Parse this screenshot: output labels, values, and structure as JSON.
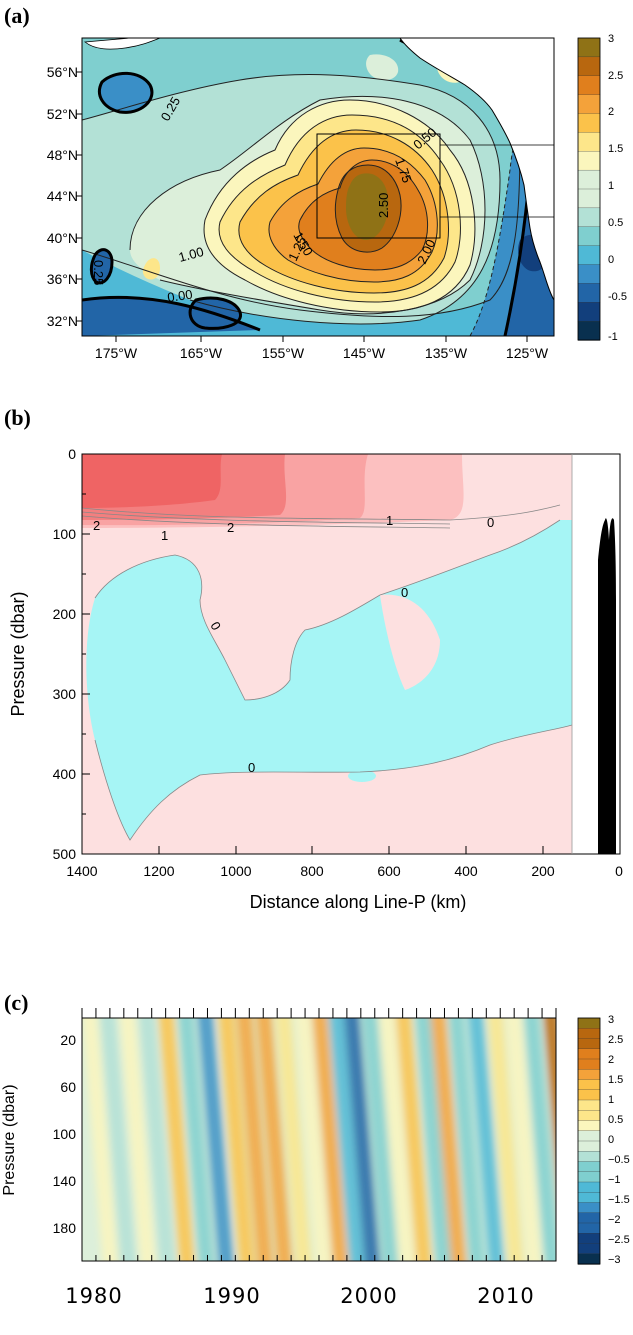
{
  "panels": {
    "a": {
      "label": "(a)"
    },
    "b": {
      "label": "(b)"
    },
    "c": {
      "label": "(c)"
    }
  },
  "colors": {
    "scale": [
      "#09304f",
      "#123f7c",
      "#2265a7",
      "#3a8fc7",
      "#4fb9d6",
      "#7fcfcf",
      "#b3e1d6",
      "#dcefda",
      "#fbf6bd",
      "#fde68a",
      "#fbc24a",
      "#f4a23a",
      "#e07f1d",
      "#b8670f",
      "#8f7216"
    ],
    "positive_fill": [
      "#fde0e0",
      "#fcc0c0",
      "#f9a3a3",
      "#f37f7f",
      "#ef6464"
    ],
    "negative_fill": "#a6f5f5",
    "land": "#ffffff",
    "bathymetry": "#000000"
  },
  "chart_data": [
    {
      "panel": "a",
      "type": "heatmap",
      "title": "",
      "xlabel": "",
      "ylabel": "",
      "x_ticks": [
        "175°W",
        "165°W",
        "155°W",
        "145°W",
        "135°W",
        "125°W"
      ],
      "y_ticks": [
        "56°N",
        "52°N",
        "48°N",
        "44°N",
        "40°N",
        "36°N",
        "32°N"
      ],
      "contour_labels": [
        "0.25",
        "0.50",
        "1.00",
        "1.25",
        "1.50",
        "1.75",
        "2.00",
        "2.50",
        "0.25",
        "0.00"
      ],
      "colorbar": {
        "ticks": [
          "3",
          "2.5",
          "2",
          "1.5",
          "1",
          "0.5",
          "0",
          "-0.5",
          "-1"
        ],
        "range": [
          -1,
          3
        ]
      },
      "box": {
        "lon": [
          -150,
          -130
        ],
        "lat": [
          40,
          50
        ]
      },
      "grid": false
    },
    {
      "panel": "b",
      "type": "heatmap",
      "title": "",
      "xlabel": "Distance along Line-P (km)",
      "ylabel": "Pressure (dbar)",
      "xlim": [
        1400,
        0
      ],
      "ylim": [
        500,
        0
      ],
      "x_ticks": [
        "1400",
        "1200",
        "1000",
        "800",
        "600",
        "400",
        "200",
        "0"
      ],
      "y_ticks": [
        "0",
        "100",
        "200",
        "300",
        "400",
        "500"
      ],
      "contour_labels": [
        "2",
        "1",
        "2",
        "1",
        "0",
        "0",
        "0",
        "0"
      ],
      "grid": false
    },
    {
      "panel": "c",
      "type": "heatmap",
      "title": "",
      "xlabel": "",
      "ylabel": "Pressure  (dbar)",
      "xlim": [
        1980,
        2014
      ],
      "x_ticks": [
        "1980",
        "1990",
        "2000",
        "2010"
      ],
      "y_ticks": [
        "20",
        "60",
        "100",
        "140",
        "180"
      ],
      "colorbar": {
        "ticks": [
          "3",
          "2.5",
          "2",
          "1.5",
          "1",
          "0.5",
          "0",
          "−0.5",
          "−1",
          "−1.5",
          "−2",
          "−2.5",
          "−3"
        ],
        "range": [
          -3,
          3
        ]
      },
      "grid": false
    }
  ]
}
